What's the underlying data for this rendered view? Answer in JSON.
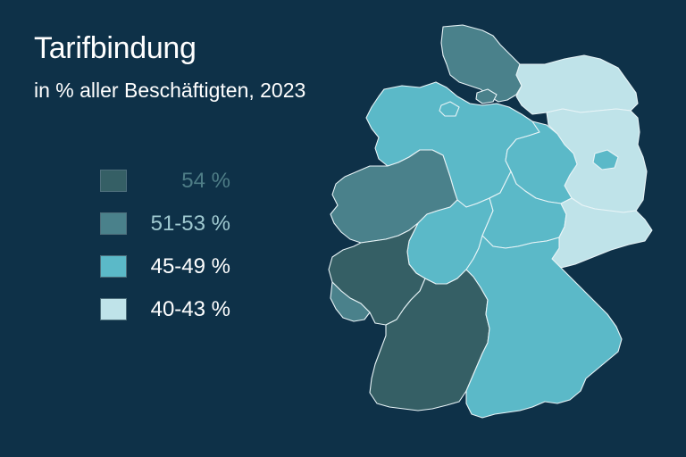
{
  "title": "Tarifbindung",
  "subtitle": "in % aller Beschäftigten, 2023",
  "colors": {
    "background": "#0e3148",
    "class_54": "#355f65",
    "class_51_53": "#4a818b",
    "class_45_49": "#5bb9c8",
    "class_40_43": "#bfe3e9",
    "border": "#e8f4f7"
  },
  "legend": [
    {
      "label": "54 %",
      "class": "class_54",
      "text_color": "#4e7d86"
    },
    {
      "label": "51-53 %",
      "class": "class_51_53",
      "text_color": "#9fc9d0"
    },
    {
      "label": "45-49 %",
      "class": "class_45_49",
      "text_color": "#ffffff"
    },
    {
      "label": "40-43 %",
      "class": "class_40_43",
      "text_color": "#ffffff"
    }
  ],
  "regions": [
    {
      "name": "Schleswig-Holstein",
      "class": "class_51_53"
    },
    {
      "name": "Hamburg",
      "class": "class_51_53"
    },
    {
      "name": "Mecklenburg-Vorpommern",
      "class": "class_40_43"
    },
    {
      "name": "Bremen",
      "class": "class_45_49"
    },
    {
      "name": "Niedersachsen",
      "class": "class_45_49"
    },
    {
      "name": "Brandenburg",
      "class": "class_40_43"
    },
    {
      "name": "Berlin",
      "class": "class_45_49"
    },
    {
      "name": "Sachsen-Anhalt",
      "class": "class_45_49"
    },
    {
      "name": "Nordrhein-Westfalen",
      "class": "class_51_53"
    },
    {
      "name": "Hessen",
      "class": "class_45_49"
    },
    {
      "name": "Thüringen",
      "class": "class_45_49"
    },
    {
      "name": "Sachsen",
      "class": "class_40_43"
    },
    {
      "name": "Rheinland-Pfalz",
      "class": "class_54"
    },
    {
      "name": "Saarland",
      "class": "class_51_53"
    },
    {
      "name": "Baden-Württemberg",
      "class": "class_54"
    },
    {
      "name": "Bayern",
      "class": "class_45_49"
    }
  ]
}
